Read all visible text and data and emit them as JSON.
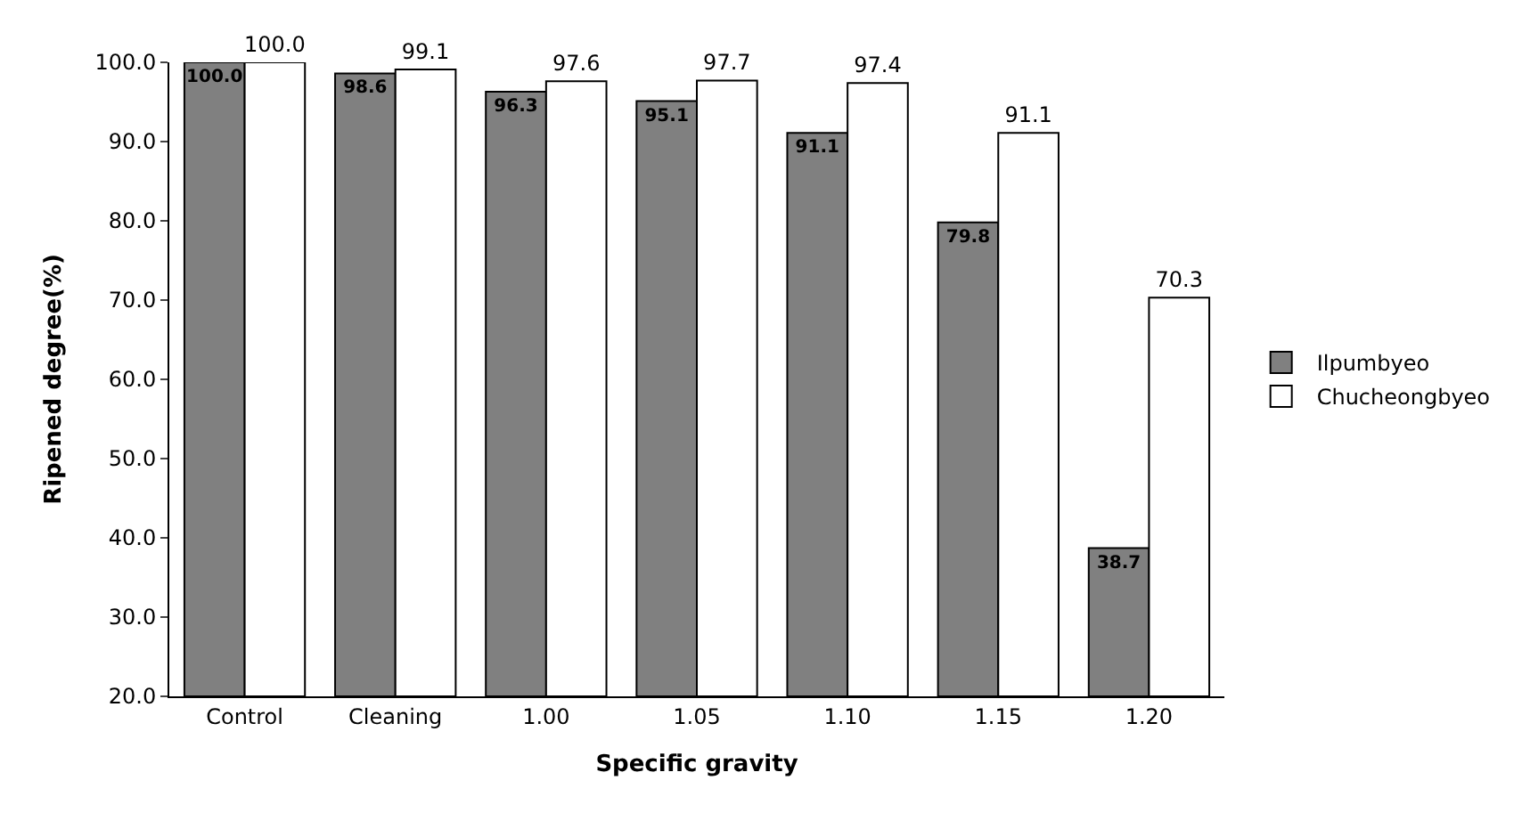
{
  "chart_data": {
    "type": "bar",
    "xlabel": "Specific gravity",
    "ylabel": "Ripened degree(%)",
    "categories": [
      "Control",
      "Cleaning",
      "1.00",
      "1.05",
      "1.10",
      "1.15",
      "1.20"
    ],
    "series": [
      {
        "name": "Ilpumbyeo",
        "color": "#808080",
        "values": [
          100.0,
          98.6,
          96.3,
          95.1,
          91.1,
          79.8,
          38.7
        ],
        "value_labels": [
          "100.0",
          "98.6",
          "96.3",
          "95.1",
          "91.1",
          "79.8",
          "38.7"
        ]
      },
      {
        "name": "Chucheongbyeo",
        "color": "#ffffff",
        "values": [
          100.0,
          99.1,
          97.6,
          97.7,
          97.4,
          91.1,
          70.3
        ],
        "value_labels": [
          "100.0",
          "99.1",
          "97.6",
          "97.7",
          "97.4",
          "91.1",
          "70.3"
        ]
      }
    ],
    "ylim": [
      20,
      100
    ],
    "yticks": [
      {
        "value": 20,
        "label": "20.0"
      },
      {
        "value": 30,
        "label": "30.0"
      },
      {
        "value": 40,
        "label": "40.0"
      },
      {
        "value": 50,
        "label": "50.0"
      },
      {
        "value": 60,
        "label": "60.0"
      },
      {
        "value": 70,
        "label": "70.0"
      },
      {
        "value": 80,
        "label": "80.0"
      },
      {
        "value": 90,
        "label": "90.0"
      },
      {
        "value": 100,
        "label": "100.0"
      }
    ],
    "grid": false,
    "legend": "right"
  }
}
